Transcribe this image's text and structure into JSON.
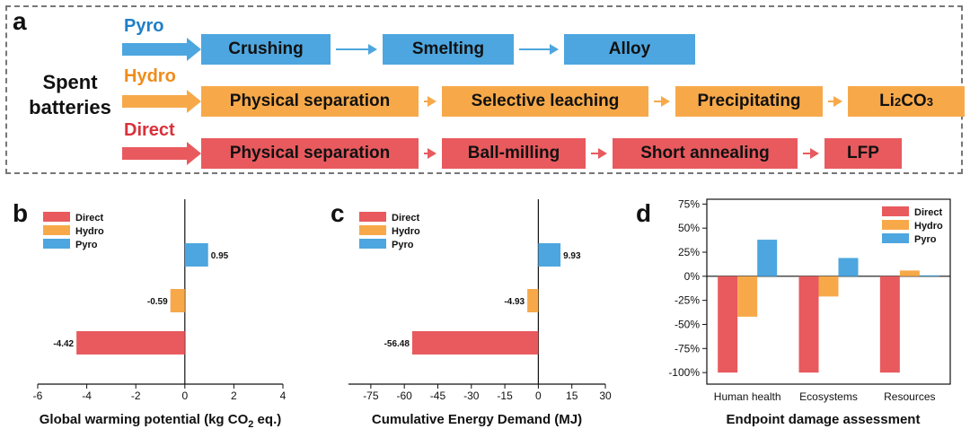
{
  "panel_labels": {
    "a": "a",
    "b": "b",
    "c": "c",
    "d": "d"
  },
  "flow": {
    "source": "Spent batteries",
    "routes": [
      {
        "name": "Pyro",
        "color": "#1f7fc6",
        "box_color": "#4da6df",
        "steps": [
          "Crushing",
          "Smelting",
          "Alloy"
        ]
      },
      {
        "name": "Hydro",
        "color": "#f08c1a",
        "box_color": "#f7a94a",
        "steps": [
          "Physical separation",
          "Selective leaching",
          "Precipitating",
          "Li2CO3"
        ]
      },
      {
        "name": "Direct",
        "color": "#d9323a",
        "box_color": "#e85a5e",
        "steps": [
          "Physical separation",
          "Ball-milling",
          "Short annealing",
          "LFP"
        ]
      }
    ]
  },
  "legend": [
    "Direct",
    "Hydro",
    "Pyro"
  ],
  "colors": {
    "Direct": "#e85a5e",
    "Hydro": "#f7a94a",
    "Pyro": "#4da6df"
  },
  "chart_data": [
    {
      "type": "bar",
      "orientation": "horizontal",
      "xlabel": "Global warming potential (kg CO2 eq.)",
      "categories": [
        "Pyro",
        "Hydro",
        "Direct"
      ],
      "values": [
        0.95,
        -0.59,
        -4.42
      ],
      "data_labels": [
        "0.95",
        "-0.59",
        "-4.42"
      ],
      "xlim": [
        -6,
        4
      ],
      "xticks": [
        "-6",
        "-4",
        "-2",
        "0",
        "2",
        "4"
      ],
      "legend_position": "top-left"
    },
    {
      "type": "bar",
      "orientation": "horizontal",
      "xlabel": "Cumulative Energy Demand (MJ)",
      "categories": [
        "Pyro",
        "Hydro",
        "Direct"
      ],
      "values": [
        9.93,
        -4.93,
        -56.48
      ],
      "data_labels": [
        "9.93",
        "-4.93",
        "-56.48"
      ],
      "xlim": [
        -85,
        30
      ],
      "xticks": [
        "-75",
        "-60",
        "-45",
        "-30",
        "-15",
        "0",
        "15",
        "30"
      ],
      "legend_position": "top-left"
    },
    {
      "type": "bar",
      "xlabel": "Endpoint damage assessment",
      "categories": [
        "Human health",
        "Ecosystems",
        "Resources"
      ],
      "series": [
        {
          "name": "Direct",
          "values": [
            -100,
            -100,
            -100
          ]
        },
        {
          "name": "Hydro",
          "values": [
            -42,
            -21,
            6
          ]
        },
        {
          "name": "Pyro",
          "values": [
            38,
            19,
            1
          ]
        }
      ],
      "ylim": [
        -112,
        80
      ],
      "yticks": [
        "75%",
        "50%",
        "25%",
        "0%",
        "-25%",
        "-50%",
        "-75%",
        "-100%"
      ],
      "legend_position": "top-right"
    }
  ]
}
